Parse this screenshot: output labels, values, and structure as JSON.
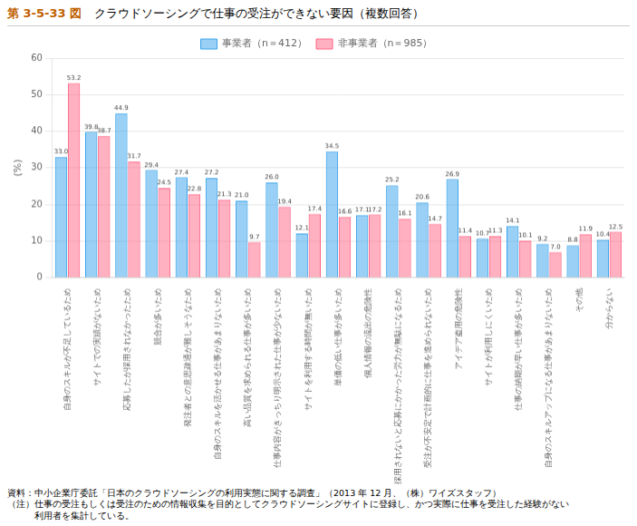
{
  "chart_data": {
    "type": "bar",
    "title": "クラウドソーシングで仕事の受注ができない要因（複数回答）",
    "annotations": [
      "第 3-5-33 図",
      "資料：中小企業庁委託「日本のクラウドソーシングの利用実態に関する調査」（2013 年 12 月、（株）ワイズスタッフ）",
      "（注）仕事の受注もしくは受注のための情報収集を目的としてクラウドソーシングサイトに登録し、かつ実際に仕事を受注した経験がない",
      "　　　利用者を集計している。"
    ],
    "y_label": "(%)",
    "categories": [
      "自身のスキルが不足しているため",
      "サイトでの実績がないため",
      "応募したが採用されなかったため",
      "競合が多いため",
      "発注者との意思疎通が難しそうなため",
      "自身のスキルを活かせる仕事があまりないため",
      "高い品質を求められる仕事が多いため",
      "仕事内容がきっちり明示された仕事が少ないため",
      "サイトを利用する時間が無いため",
      "単価の低い仕事が多いため",
      "個人情報の流出の危険性",
      "採用されないと応募にかかった労力が無駄になるため",
      "受注が不安定で計画的に仕事を進められないため",
      "アイデア盗用の危険性",
      "サイトが利用しにくいため",
      "仕事の納期が早い仕事が多いため",
      "自身のスキルアップになる仕事があまりないため",
      "その他",
      "分からない"
    ],
    "series": [
      {
        "name": "事業者（n＝412）",
        "values": [
          33.0,
          39.8,
          44.9,
          29.4,
          27.4,
          27.2,
          21.0,
          26.0,
          12.1,
          34.5,
          17.1,
          25.2,
          20.6,
          26.9,
          10.7,
          14.1,
          9.2,
          8.8,
          10.4
        ],
        "value_labels": [
          "33.0",
          "39.8",
          "44.9",
          "29.4",
          "27.4",
          "27.2",
          "21.0",
          "26.0",
          "12.1",
          "34.5",
          "17.1",
          "25.2",
          "20.6",
          "26.9",
          "10.7",
          "14.1",
          "9.2",
          "8.8",
          "10.4"
        ]
      },
      {
        "name": "非事業者（n＝985）",
        "values": [
          53.2,
          38.7,
          31.7,
          24.5,
          22.8,
          21.3,
          9.7,
          19.4,
          17.4,
          16.6,
          17.2,
          16.1,
          14.7,
          11.4,
          11.3,
          10.1,
          7.0,
          11.9,
          12.5
        ],
        "value_labels": [
          "53.2",
          "38.7",
          "31.7",
          "24.5",
          "22.8",
          "21.3",
          "9.7",
          "19.4",
          "17.4",
          "16.6",
          "17.2",
          "16.1",
          "14.7",
          "11.4",
          "11.3",
          "10.1",
          "7.0",
          "11.9",
          "12.5"
        ]
      }
    ],
    "ylim": [
      0,
      60
    ],
    "yticks": [
      0,
      10,
      20,
      30,
      40,
      50,
      60
    ],
    "grid": true,
    "legend": "top",
    "data_labels": true
  }
}
